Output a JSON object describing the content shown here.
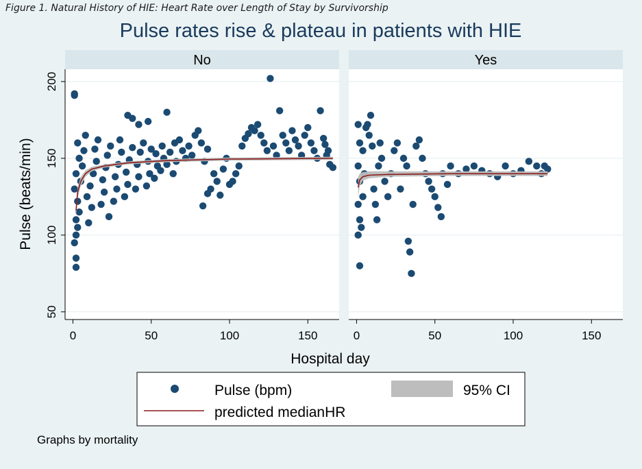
{
  "figure_caption": "Figure 1. Natural History of HIE: Heart Rate over Length of Stay by Survivorship",
  "note": "Graphs by mortality",
  "colors": {
    "background": "#eaf2f3",
    "strip": "#d9e6eb",
    "points": "#1b4a72",
    "line": "#8b1a1a",
    "ci": "#bdbdbd",
    "title": "#1a3a5c"
  },
  "chart_data": {
    "type": "scatter",
    "title": "Pulse rates rise & plateau in patients with HIE",
    "xlabel": "Hospital day",
    "ylabel": "Pulse (beats/min)",
    "xlim": [
      -5,
      170
    ],
    "ylim": [
      45,
      208
    ],
    "x_ticks": [
      0,
      50,
      100,
      150
    ],
    "y_ticks": [
      50,
      100,
      150,
      200
    ],
    "grid": true,
    "legend": {
      "placement": "bottom",
      "entries": [
        {
          "label": "Pulse (bpm)",
          "kind": "marker"
        },
        {
          "label": "95% CI",
          "kind": "band"
        },
        {
          "label": "predicted medianHR",
          "kind": "line"
        }
      ]
    },
    "panels": [
      {
        "label": "No",
        "series": [
          {
            "kind": "scatter",
            "points": [
              [
                1,
                191
              ],
              [
                1,
                192
              ],
              [
                2,
                79
              ],
              [
                2,
                85
              ],
              [
                1,
                95
              ],
              [
                2,
                100
              ],
              [
                3,
                105
              ],
              [
                2,
                110
              ],
              [
                4,
                115
              ],
              [
                3,
                122
              ],
              [
                1,
                130
              ],
              [
                5,
                135
              ],
              [
                2,
                140
              ],
              [
                6,
                145
              ],
              [
                4,
                150
              ],
              [
                7,
                155
              ],
              [
                3,
                160
              ],
              [
                8,
                165
              ],
              [
                10,
                108
              ],
              [
                12,
                118
              ],
              [
                9,
                125
              ],
              [
                11,
                132
              ],
              [
                13,
                140
              ],
              [
                15,
                148
              ],
              [
                14,
                156
              ],
              [
                16,
                162
              ],
              [
                18,
                120
              ],
              [
                20,
                128
              ],
              [
                19,
                136
              ],
              [
                21,
                144
              ],
              [
                22,
                152
              ],
              [
                24,
                158
              ],
              [
                23,
                112
              ],
              [
                26,
                122
              ],
              [
                28,
                130
              ],
              [
                27,
                138
              ],
              [
                29,
                146
              ],
              [
                31,
                154
              ],
              [
                30,
                162
              ],
              [
                33,
                125
              ],
              [
                35,
                133
              ],
              [
                34,
                141
              ],
              [
                36,
                149
              ],
              [
                38,
                157
              ],
              [
                40,
                130
              ],
              [
                42,
                138
              ],
              [
                41,
                146
              ],
              [
                43,
                154
              ],
              [
                45,
                160
              ],
              [
                47,
                132
              ],
              [
                49,
                140
              ],
              [
                48,
                148
              ],
              [
                50,
                156
              ],
              [
                52,
                137
              ],
              [
                54,
                145
              ],
              [
                53,
                153
              ],
              [
                56,
                142
              ],
              [
                58,
                150
              ],
              [
                57,
                158
              ],
              [
                60,
                146
              ],
              [
                62,
                154
              ],
              [
                64,
                140
              ],
              [
                66,
                148
              ],
              [
                65,
                160
              ],
              [
                35,
                178
              ],
              [
                38,
                176
              ],
              [
                42,
                172
              ],
              [
                48,
                174
              ],
              [
                60,
                180
              ],
              [
                68,
                162
              ],
              [
                70,
                155
              ],
              [
                72,
                150
              ],
              [
                74,
                158
              ],
              [
                76,
                152
              ],
              [
                78,
                165
              ],
              [
                80,
                168
              ],
              [
                82,
                160
              ],
              [
                84,
                148
              ],
              [
                86,
                156
              ],
              [
                83,
                119
              ],
              [
                86,
                127
              ],
              [
                88,
                130
              ],
              [
                90,
                140
              ],
              [
                92,
                135
              ],
              [
                94,
                126
              ],
              [
                96,
                143
              ],
              [
                98,
                150
              ],
              [
                100,
                133
              ],
              [
                102,
                135
              ],
              [
                104,
                140
              ],
              [
                106,
                145
              ],
              [
                108,
                158
              ],
              [
                110,
                163
              ],
              [
                112,
                166
              ],
              [
                114,
                170
              ],
              [
                116,
                168
              ],
              [
                118,
                172
              ],
              [
                120,
                165
              ],
              [
                122,
                160
              ],
              [
                124,
                155
              ],
              [
                126,
                202
              ],
              [
                128,
                158
              ],
              [
                130,
                152
              ],
              [
                132,
                181
              ],
              [
                134,
                165
              ],
              [
                136,
                160
              ],
              [
                138,
                155
              ],
              [
                140,
                168
              ],
              [
                142,
                162
              ],
              [
                144,
                158
              ],
              [
                146,
                152
              ],
              [
                148,
                165
              ],
              [
                150,
                170
              ],
              [
                152,
                160
              ],
              [
                154,
                155
              ],
              [
                156,
                150
              ],
              [
                158,
                181
              ],
              [
                160,
                163
              ],
              [
                162,
                152
              ],
              [
                164,
                146
              ],
              [
                166,
                144
              ],
              [
                163,
                155
              ],
              [
                161,
                159
              ]
            ]
          },
          {
            "kind": "line",
            "name": "predicted medianHR",
            "points": [
              [
                2,
                116
              ],
              [
                3,
                128
              ],
              [
                5,
                135
              ],
              [
                8,
                140
              ],
              [
                12,
                143
              ],
              [
                20,
                145
              ],
              [
                35,
                147
              ],
              [
                60,
                148.5
              ],
              [
                100,
                149.5
              ],
              [
                166,
                150
              ]
            ]
          },
          {
            "kind": "band",
            "name": "95% CI",
            "lower": [
              [
                2,
                112
              ],
              [
                3,
                124
              ],
              [
                5,
                132
              ],
              [
                8,
                138
              ],
              [
                12,
                141.5
              ],
              [
                20,
                144
              ],
              [
                35,
                146
              ],
              [
                60,
                147.5
              ],
              [
                100,
                148.5
              ],
              [
                166,
                149
              ]
            ],
            "upper": [
              [
                2,
                120
              ],
              [
                3,
                131
              ],
              [
                5,
                138
              ],
              [
                8,
                142
              ],
              [
                12,
                144.5
              ],
              [
                20,
                146
              ],
              [
                35,
                148
              ],
              [
                60,
                149.5
              ],
              [
                100,
                150.5
              ],
              [
                166,
                151
              ]
            ]
          }
        ]
      },
      {
        "label": "Yes",
        "series": [
          {
            "kind": "scatter",
            "points": [
              [
                1,
                172
              ],
              [
                2,
                80
              ],
              [
                1,
                100
              ],
              [
                2,
                110
              ],
              [
                1,
                120
              ],
              [
                2,
                135
              ],
              [
                1,
                145
              ],
              [
                2,
                160
              ],
              [
                3,
                105
              ],
              [
                4,
                125
              ],
              [
                5,
                140
              ],
              [
                4,
                155
              ],
              [
                6,
                170
              ],
              [
                7,
                172
              ],
              [
                8,
                165
              ],
              [
                9,
                178
              ],
              [
                10,
                158
              ],
              [
                11,
                130
              ],
              [
                12,
                120
              ],
              [
                13,
                110
              ],
              [
                14,
                145
              ],
              [
                15,
                160
              ],
              [
                16,
                150
              ],
              [
                18,
                135
              ],
              [
                20,
                125
              ],
              [
                22,
                140
              ],
              [
                24,
                155
              ],
              [
                26,
                160
              ],
              [
                28,
                130
              ],
              [
                30,
                150
              ],
              [
                32,
                145
              ],
              [
                33,
                96
              ],
              [
                34,
                89
              ],
              [
                35,
                75
              ],
              [
                36,
                120
              ],
              [
                38,
                158
              ],
              [
                40,
                162
              ],
              [
                42,
                150
              ],
              [
                44,
                140
              ],
              [
                46,
                135
              ],
              [
                48,
                130
              ],
              [
                50,
                125
              ],
              [
                52,
                118
              ],
              [
                54,
                112
              ],
              [
                55,
                140
              ],
              [
                58,
                133
              ],
              [
                60,
                145
              ],
              [
                65,
                140
              ],
              [
                70,
                143
              ],
              [
                75,
                145
              ],
              [
                80,
                142
              ],
              [
                85,
                140
              ],
              [
                90,
                138
              ],
              [
                95,
                145
              ],
              [
                100,
                140
              ],
              [
                105,
                142
              ],
              [
                110,
                148
              ],
              [
                115,
                145
              ],
              [
                118,
                140
              ],
              [
                120,
                145
              ],
              [
                122,
                143
              ]
            ]
          },
          {
            "kind": "line",
            "name": "predicted medianHR",
            "points": [
              [
                1,
                131
              ],
              [
                2,
                136
              ],
              [
                4,
                138
              ],
              [
                8,
                139
              ],
              [
                20,
                139.5
              ],
              [
                60,
                140
              ],
              [
                122,
                140
              ]
            ]
          },
          {
            "kind": "band",
            "name": "95% CI",
            "lower": [
              [
                1,
                124
              ],
              [
                2,
                132
              ],
              [
                4,
                135.5
              ],
              [
                8,
                137
              ],
              [
                20,
                138
              ],
              [
                60,
                138.5
              ],
              [
                122,
                138.5
              ]
            ],
            "upper": [
              [
                1,
                138
              ],
              [
                2,
                140
              ],
              [
                4,
                141
              ],
              [
                8,
                141.5
              ],
              [
                20,
                141.5
              ],
              [
                60,
                141.5
              ],
              [
                122,
                141.5
              ]
            ]
          }
        ]
      }
    ]
  }
}
